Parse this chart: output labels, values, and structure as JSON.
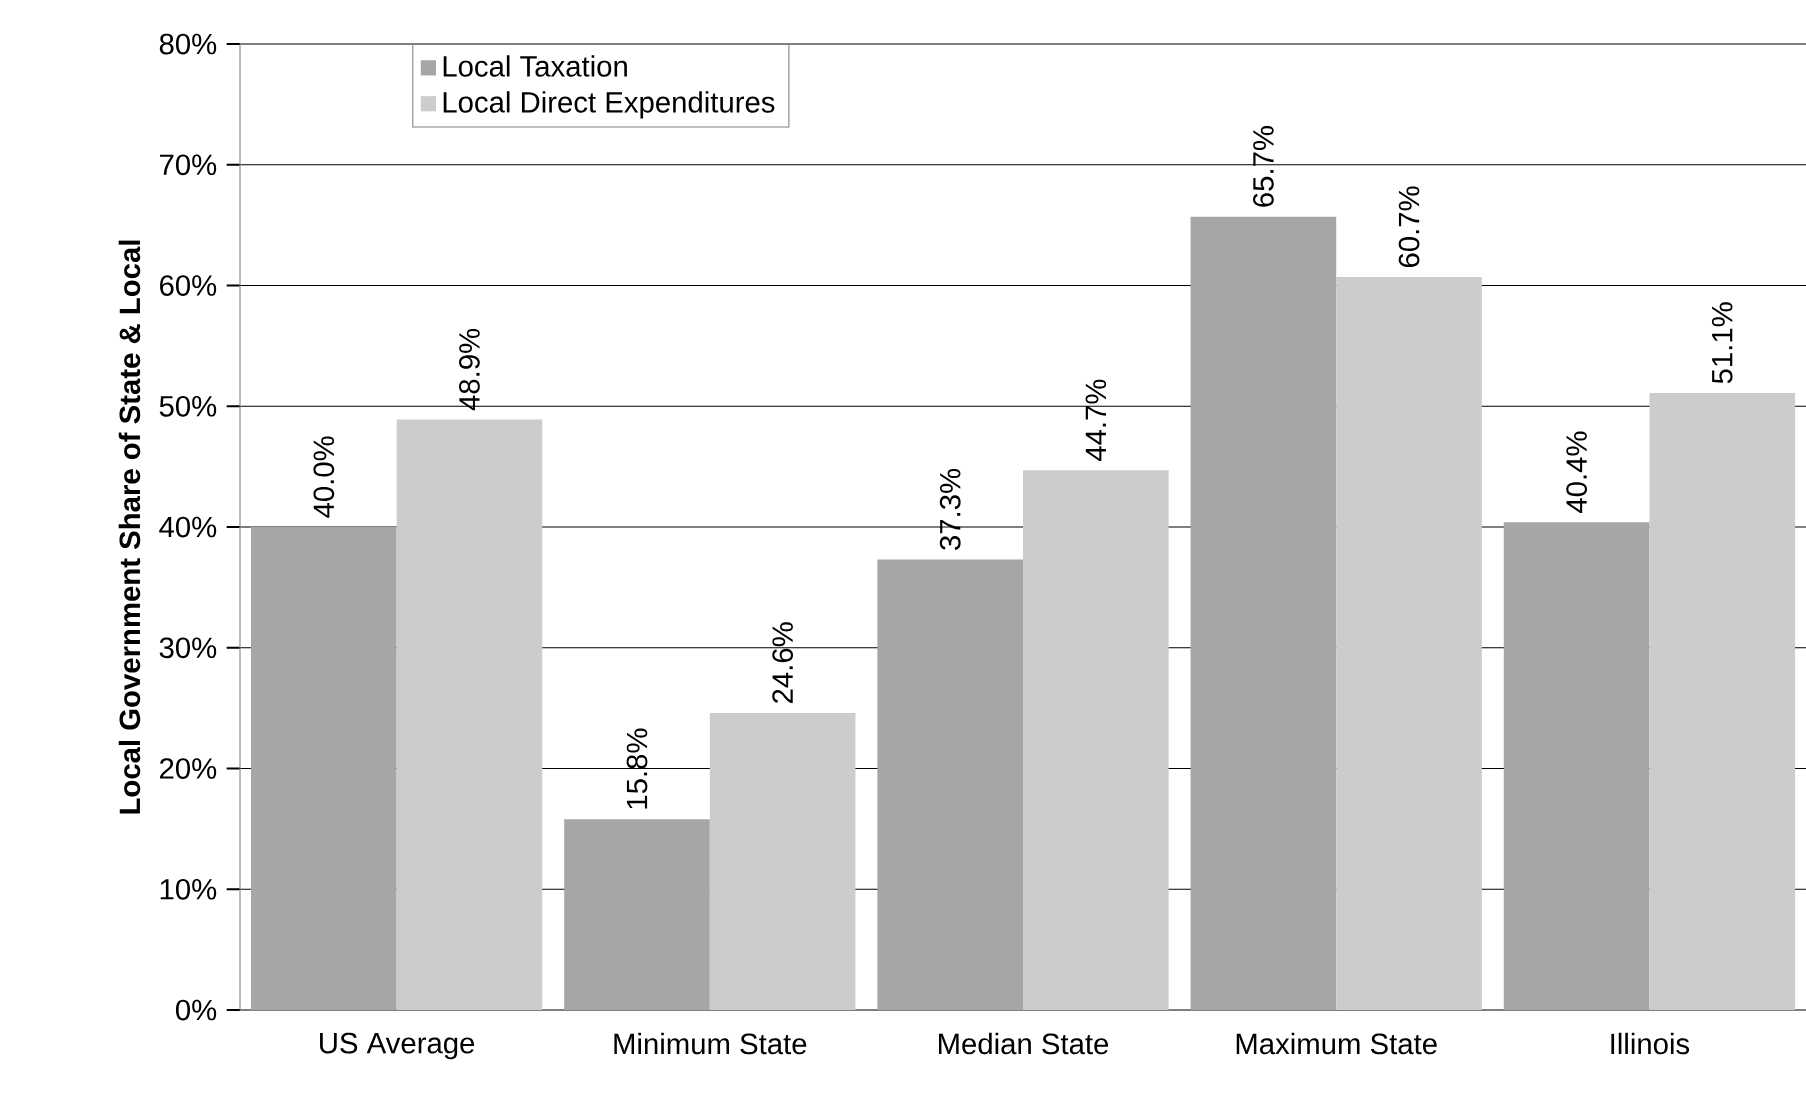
{
  "chart_data": {
    "type": "bar",
    "ylabel": "**Local Government Share of State & Local**",
    "categories": [
      "US Average",
      "Minimum State",
      "Median State",
      "Maximum State",
      "Illinois"
    ],
    "series": [
      {
        "name": "Local Taxation",
        "color": "#a6a6a6",
        "values": [
          40.0,
          15.8,
          37.3,
          65.7,
          40.4
        ],
        "value_labels": [
          "40.0%",
          "15.8%",
          "37.3%",
          "65.7%",
          "40.4%"
        ]
      },
      {
        "name": "Local Direct Expenditures",
        "color": "#cccccc",
        "values": [
          48.9,
          24.6,
          44.7,
          60.7,
          51.1
        ],
        "value_labels": [
          "48.9%",
          "24.6%",
          "44.7%",
          "60.7%",
          "51.1%"
        ]
      }
    ],
    "ylim": [
      0,
      80
    ],
    "yticks": [
      {
        "value": 0,
        "label": "0%"
      },
      {
        "value": 10,
        "label": "10%"
      },
      {
        "value": 20,
        "label": "20%"
      },
      {
        "value": 30,
        "label": "30%"
      },
      {
        "value": 40,
        "label": "40%"
      },
      {
        "value": 50,
        "label": "50%"
      },
      {
        "value": 60,
        "label": "60%"
      },
      {
        "value": 70,
        "label": "70%"
      },
      {
        "value": 80,
        "label": "80%"
      }
    ],
    "grid": "y",
    "legend": "top left"
  }
}
